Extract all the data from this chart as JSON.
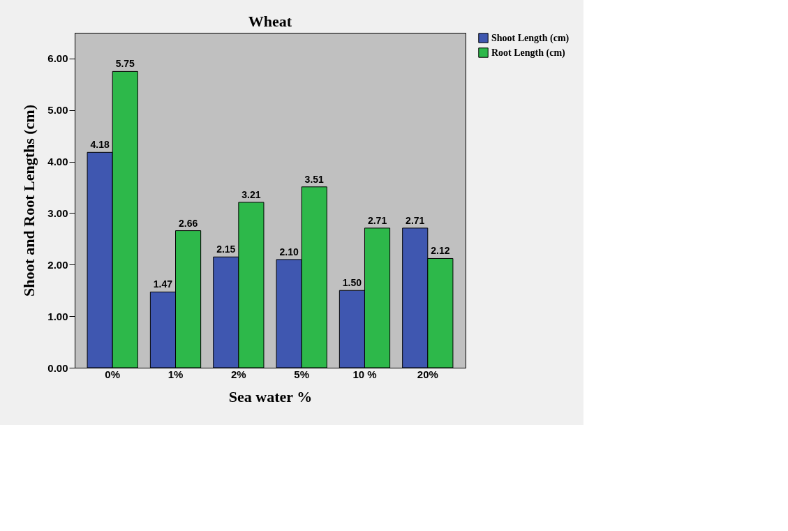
{
  "chart_data": {
    "type": "bar",
    "title": "Wheat",
    "xlabel": "Sea water %",
    "ylabel": "Shoot and Root Lengths (cm)",
    "categories": [
      "0%",
      "1%",
      "2%",
      "5%",
      "10 %",
      "20%"
    ],
    "series": [
      {
        "name": "Shoot Length (cm)",
        "color": "#3f57b0",
        "values": [
          4.18,
          1.47,
          2.15,
          2.1,
          1.5,
          2.71
        ],
        "value_labels": [
          "4.18",
          "1.47",
          "2.15",
          "2.10",
          "1.50",
          "2.71"
        ]
      },
      {
        "name": "Root Length (cm)",
        "color": "#2db84a",
        "values": [
          5.75,
          2.66,
          3.21,
          3.51,
          2.71,
          2.12
        ],
        "value_labels": [
          "5.75",
          "2.66",
          "3.21",
          "3.51",
          "2.71",
          "2.12"
        ]
      }
    ],
    "ylim": [
      0,
      6.5
    ],
    "yticks": [
      {
        "value": 0,
        "label": "0.00"
      },
      {
        "value": 1,
        "label": "1.00"
      },
      {
        "value": 2,
        "label": "2.00"
      },
      {
        "value": 3,
        "label": "3.00"
      },
      {
        "value": 4,
        "label": "4.00"
      },
      {
        "value": 5,
        "label": "5.00"
      },
      {
        "value": 6,
        "label": "6.00"
      }
    ],
    "grid": false,
    "legend": "top right"
  }
}
